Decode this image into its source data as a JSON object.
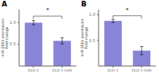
{
  "chart_data": [
    {
      "type": "bar",
      "title": "A",
      "categories": [
        "DLD-1",
        "DLD-1-OxR"
      ],
      "values": [
        1.0,
        0.58
      ],
      "errors": [
        0.05,
        0.07
      ],
      "color": "#8884d8",
      "y_label": "miR-200b expression\nFold change",
      "ylim": [
        0,
        1.3
      ],
      "yticks": [
        0.5,
        {
          "value": 1.0,
          "label": "1.0"
        }
      ],
      "annotations": [
        {
          "text": "*",
          "x": [
            "DLD-1",
            "DLD-1-OxR"
          ],
          "y": 1.15
        }
      ]
    },
    {
      "type": "bar",
      "title": "B",
      "categories": [
        "DLD-1",
        "DLD-1-OxR"
      ],
      "values": [
        0.88,
        0.3
      ],
      "errors": [
        0.03,
        0.08
      ],
      "color": "#8884d8",
      "y_label": "miR-200c expression\nFold change",
      "ylim": [
        0,
        1.1
      ],
      "yticks": [
        0.5,
        {
          "value": 1.0,
          "label": "1.0"
        }
      ],
      "annotations": [
        {
          "text": "*",
          "x": [
            "DLD-1",
            "DLD-1-OxR"
          ],
          "y": 0.98
        }
      ]
    }
  ]
}
